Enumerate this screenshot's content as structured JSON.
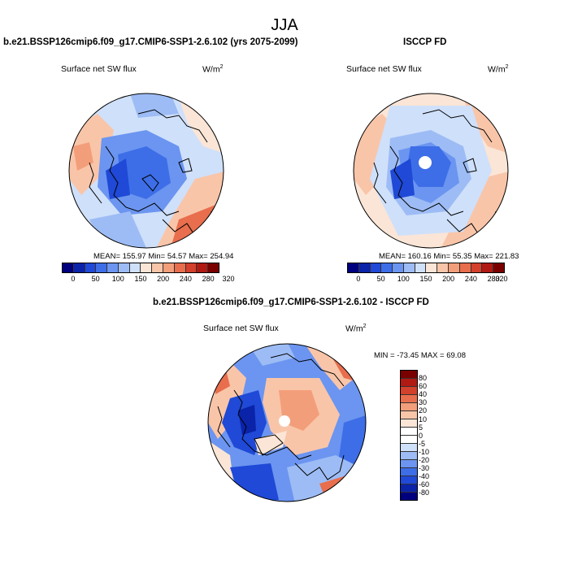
{
  "figure": {
    "title": "JJA"
  },
  "panels": [
    {
      "title": "b.e21.BSSP126cmip6.f09_g17.CMIP6-SSP1-2.6.102 (yrs 2075-2099)",
      "variable": "Surface net SW flux",
      "units": "W/m",
      "units_exp": "2",
      "stats": "MEAN= 155.97  Min=  54.57  Max= 254.94"
    },
    {
      "title": "ISCCP FD",
      "variable": "Surface net SW flux",
      "units": "W/m",
      "units_exp": "2",
      "stats": "MEAN= 160.16  Min=  55.35  Max= 221.83"
    },
    {
      "title": "b.e21.BSSP126cmip6.f09_g17.CMIP6-SSP1-2.6.102 - ISCCP FD",
      "variable": "Surface net SW flux",
      "units": "W/m",
      "units_exp": "2",
      "stats": "MIN = -73.45 MAX =  69.08"
    }
  ],
  "colorbar_abs": {
    "labels": [
      "0",
      "50",
      "100",
      "150",
      "200",
      "240",
      "280",
      "320"
    ],
    "colors": [
      "#00007f",
      "#0a23a8",
      "#1f49d6",
      "#3d6ee8",
      "#6b95f0",
      "#9dbcf5",
      "#cfe0fa",
      "#fbe5d6",
      "#f9c5a9",
      "#f39e7a",
      "#e86e4d",
      "#d3402b",
      "#b01a13",
      "#7a0000"
    ]
  },
  "colorbar_diff": {
    "labels": [
      "80",
      "60",
      "40",
      "30",
      "20",
      "10",
      "5",
      "0",
      "-5",
      "-10",
      "-20",
      "-30",
      "-40",
      "-60",
      "-80"
    ],
    "colors": [
      "#7a0000",
      "#b01a13",
      "#d3402b",
      "#e86e4d",
      "#f39e7a",
      "#f9c5a9",
      "#fbe5d6",
      "#ffffff",
      "#ffffff",
      "#cfe0fa",
      "#9dbcf5",
      "#6b95f0",
      "#3d6ee8",
      "#1f49d6",
      "#0a23a8",
      "#00007f"
    ]
  }
}
